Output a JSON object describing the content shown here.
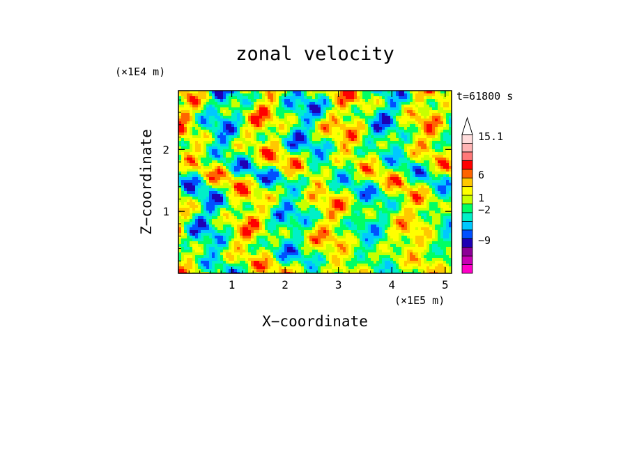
{
  "chart_data": {
    "type": "heatmap",
    "title": "zonal velocity",
    "xlabel": "X−coordinate",
    "ylabel": "Z−coordinate",
    "x_unit": "(×1E5 m)",
    "y_unit": "(×1E4 m)",
    "time_label": "t=61800 s",
    "xlim": [
      0,
      5.12
    ],
    "ylim": [
      0,
      2.95
    ],
    "x_ticks": [
      1,
      2,
      3,
      4,
      5
    ],
    "y_ticks": [
      1,
      2
    ],
    "colorbar": {
      "extend": "max",
      "levels": [
        -15,
        -12,
        -9,
        -6,
        -2,
        -1,
        0,
        1,
        2,
        6,
        10,
        15.1
      ],
      "colors": [
        "#ff00c8",
        "#c800b4",
        "#8c0096",
        "#1e00b4",
        "#0050ff",
        "#00c8ff",
        "#00f0c8",
        "#00ff64",
        "#c8ff00",
        "#ffff00",
        "#ffc800",
        "#ff6400",
        "#ff0000",
        "#ff7878",
        "#ffb4b4",
        "#ffdcdc"
      ],
      "labels": [
        "15.1",
        "6",
        "1",
        "−2",
        "−9"
      ]
    }
  }
}
